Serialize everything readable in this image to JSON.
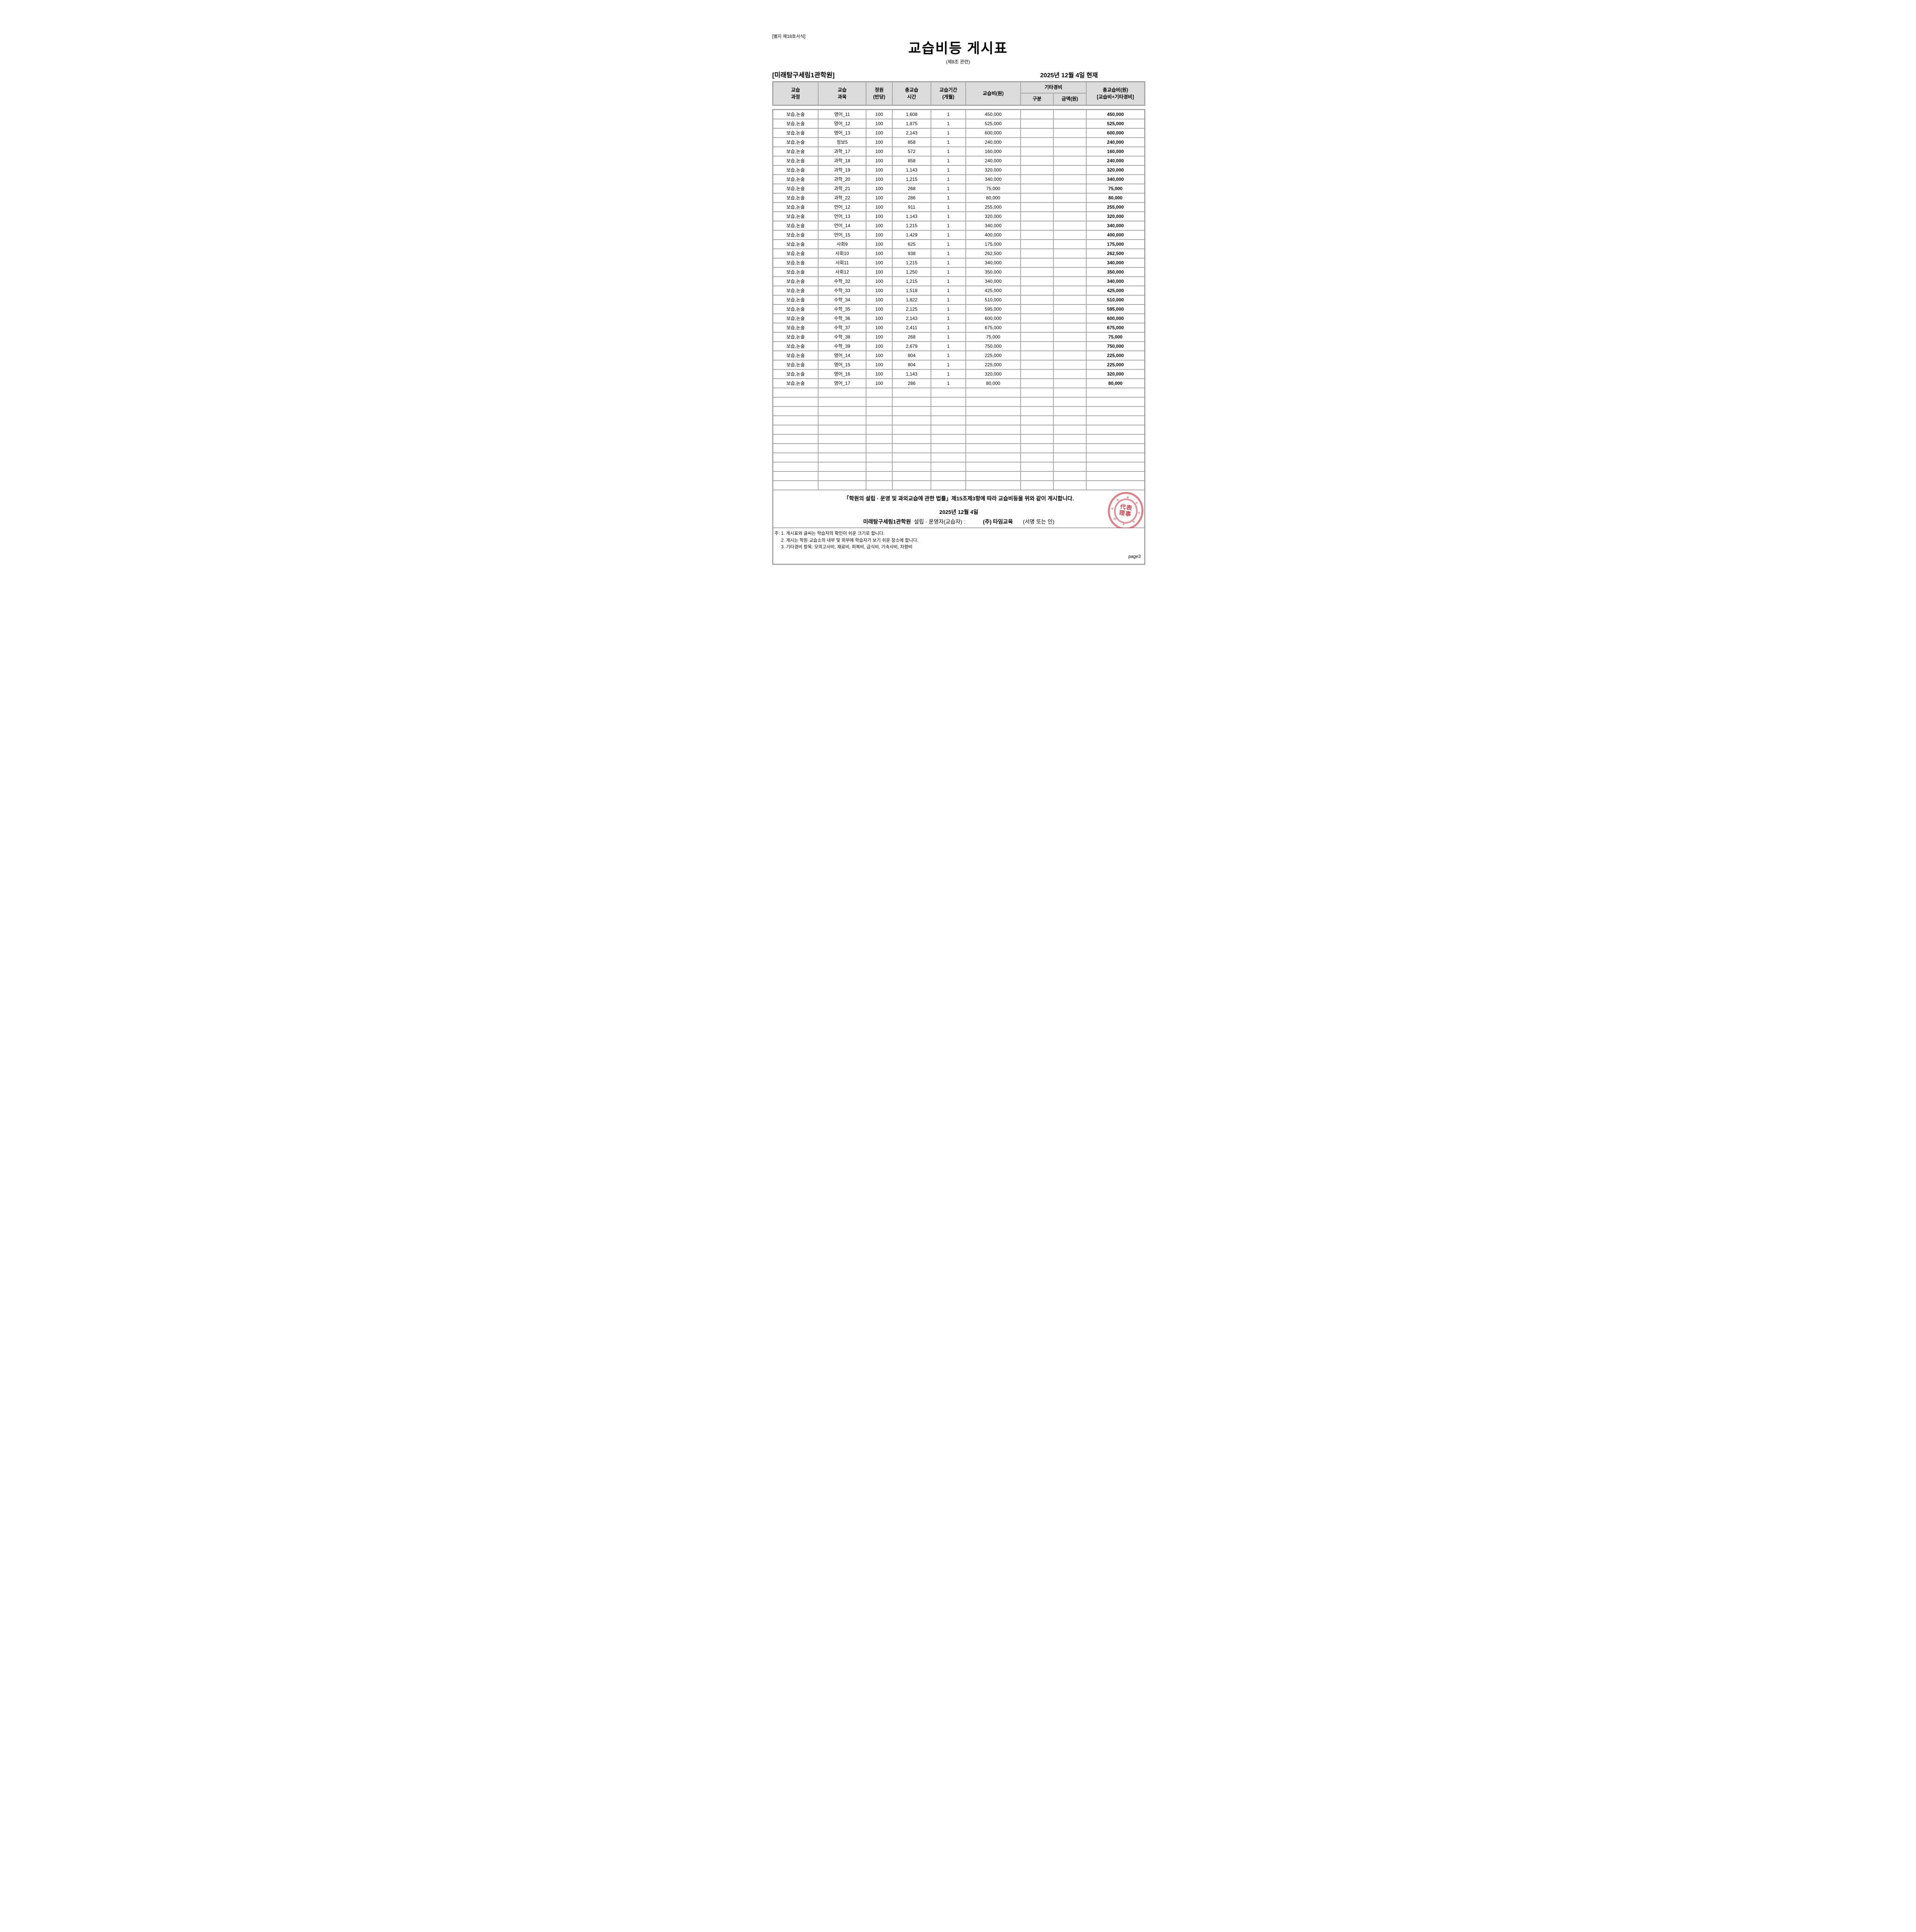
{
  "page": {
    "form_label": "[별지 제18호서식]",
    "title": "교습비등 게시표",
    "subtitle": "(제8조 관련)",
    "academy_name": "[미래탐구세림1관학원]",
    "as_of_date": "2025년 12월 4일 현재",
    "page_number": "page3"
  },
  "table": {
    "headers": {
      "course_line1": "교습",
      "course_line2": "과정",
      "subject_line1": "교습",
      "subject_line2": "과목",
      "capacity_line1": "정원",
      "capacity_line2": "(반당)",
      "hours_line1": "총교습",
      "hours_line2": "시간",
      "period_line1": "교습기간",
      "period_line2": "(개월)",
      "fee": "교습비(원)",
      "other_group": "기타경비",
      "other_type": "구분",
      "other_amount": "금액(원)",
      "total_line1": "총교습비(원)",
      "total_line2": "[교습비+기타경비]"
    },
    "rows": [
      [
        "보습,논술",
        "영어_11",
        "100",
        "1,608",
        "1",
        "450,000",
        "",
        "",
        "450,000"
      ],
      [
        "보습,논술",
        "영어_12",
        "100",
        "1,875",
        "1",
        "525,000",
        "",
        "",
        "525,000"
      ],
      [
        "보습,논술",
        "영어_13",
        "100",
        "2,143",
        "1",
        "600,000",
        "",
        "",
        "600,000"
      ],
      [
        "보습,논술",
        "정보5",
        "100",
        "858",
        "1",
        "240,000",
        "",
        "",
        "240,000"
      ],
      [
        "보습,논술",
        "과학_17",
        "100",
        "572",
        "1",
        "160,000",
        "",
        "",
        "160,000"
      ],
      [
        "보습,논술",
        "과학_18",
        "100",
        "858",
        "1",
        "240,000",
        "",
        "",
        "240,000"
      ],
      [
        "보습,논술",
        "과학_19",
        "100",
        "1,143",
        "1",
        "320,000",
        "",
        "",
        "320,000"
      ],
      [
        "보습,논술",
        "과학_20",
        "100",
        "1,215",
        "1",
        "340,000",
        "",
        "",
        "340,000"
      ],
      [
        "보습,논술",
        "과학_21",
        "100",
        "268",
        "1",
        "75,000",
        "",
        "",
        "75,000"
      ],
      [
        "보습,논술",
        "과학_22",
        "100",
        "286",
        "1",
        "80,000",
        "",
        "",
        "80,000"
      ],
      [
        "보습,논술",
        "언어_12",
        "100",
        "911",
        "1",
        "255,000",
        "",
        "",
        "255,000"
      ],
      [
        "보습,논술",
        "언어_13",
        "100",
        "1,143",
        "1",
        "320,000",
        "",
        "",
        "320,000"
      ],
      [
        "보습,논술",
        "언어_14",
        "100",
        "1,215",
        "1",
        "340,000",
        "",
        "",
        "340,000"
      ],
      [
        "보습,논술",
        "언어_15",
        "100",
        "1,429",
        "1",
        "400,000",
        "",
        "",
        "400,000"
      ],
      [
        "보습,논술",
        "사회9",
        "100",
        "625",
        "1",
        "175,000",
        "",
        "",
        "175,000"
      ],
      [
        "보습,논술",
        "사회10",
        "100",
        "938",
        "1",
        "262,500",
        "",
        "",
        "262,500"
      ],
      [
        "보습,논술",
        "사회11",
        "100",
        "1,215",
        "1",
        "340,000",
        "",
        "",
        "340,000"
      ],
      [
        "보습,논술",
        "사회12",
        "100",
        "1,250",
        "1",
        "350,000",
        "",
        "",
        "350,000"
      ],
      [
        "보습,논술",
        "수학_32",
        "100",
        "1,215",
        "1",
        "340,000",
        "",
        "",
        "340,000"
      ],
      [
        "보습,논술",
        "수학_33",
        "100",
        "1,518",
        "1",
        "425,000",
        "",
        "",
        "425,000"
      ],
      [
        "보습,논술",
        "수학_34",
        "100",
        "1,822",
        "1",
        "510,000",
        "",
        "",
        "510,000"
      ],
      [
        "보습,논술",
        "수학_35",
        "100",
        "2,125",
        "1",
        "595,000",
        "",
        "",
        "595,000"
      ],
      [
        "보습,논술",
        "수학_36",
        "100",
        "2,143",
        "1",
        "600,000",
        "",
        "",
        "600,000"
      ],
      [
        "보습,논술",
        "수학_37",
        "100",
        "2,411",
        "1",
        "675,000",
        "",
        "",
        "675,000"
      ],
      [
        "보습,논술",
        "수학_38",
        "100",
        "268",
        "1",
        "75,000",
        "",
        "",
        "75,000"
      ],
      [
        "보습,논술",
        "수학_39",
        "100",
        "2,679",
        "1",
        "750,000",
        "",
        "",
        "750,000"
      ],
      [
        "보습,논술",
        "영어_14",
        "100",
        "804",
        "1",
        "225,000",
        "",
        "",
        "225,000"
      ],
      [
        "보습,논술",
        "영어_15",
        "100",
        "804",
        "1",
        "225,000",
        "",
        "",
        "225,000"
      ],
      [
        "보습,논술",
        "영어_16",
        "100",
        "1,143",
        "1",
        "320,000",
        "",
        "",
        "320,000"
      ],
      [
        "보습,논술",
        "영어_17",
        "100",
        "286",
        "1",
        "80,000",
        "",
        "",
        "80,000"
      ]
    ],
    "empty_row_count": 11
  },
  "footer": {
    "statement": "「학원의 설립 · 운영 및 과외교습에 관한 법률」제15조제3항에 따라 교습비등을 위와 같이 게시합니다.",
    "statement_date": "2025년 12월 4일",
    "signature": {
      "academy": "미래탐구세림1관학원",
      "role_label": "설립 · 운영자(교습자) :",
      "operator": "(주) 타임교육",
      "sign_label": "(서명 또는 인)"
    },
    "notes": [
      "주: 1. 게시표와 글씨는 학습자의 확인이 쉬운 크기로 합니다.",
      "2. 게시는 학원·교습소의 내부 및 외부에 학습자가 보기 쉬운 장소에 합니다.",
      "3. 기타경비 항목: 모의고사비, 재료비, 피복비, 급식비, 기숙사비, 차량비"
    ]
  },
  "seal": {
    "center_text": "代表理事"
  },
  "colors": {
    "table_border": "#a6a6a6",
    "header_bg": "#dcdcdc",
    "seal_red": "#cb3e4a",
    "text": "#000000",
    "background": "#ffffff"
  }
}
